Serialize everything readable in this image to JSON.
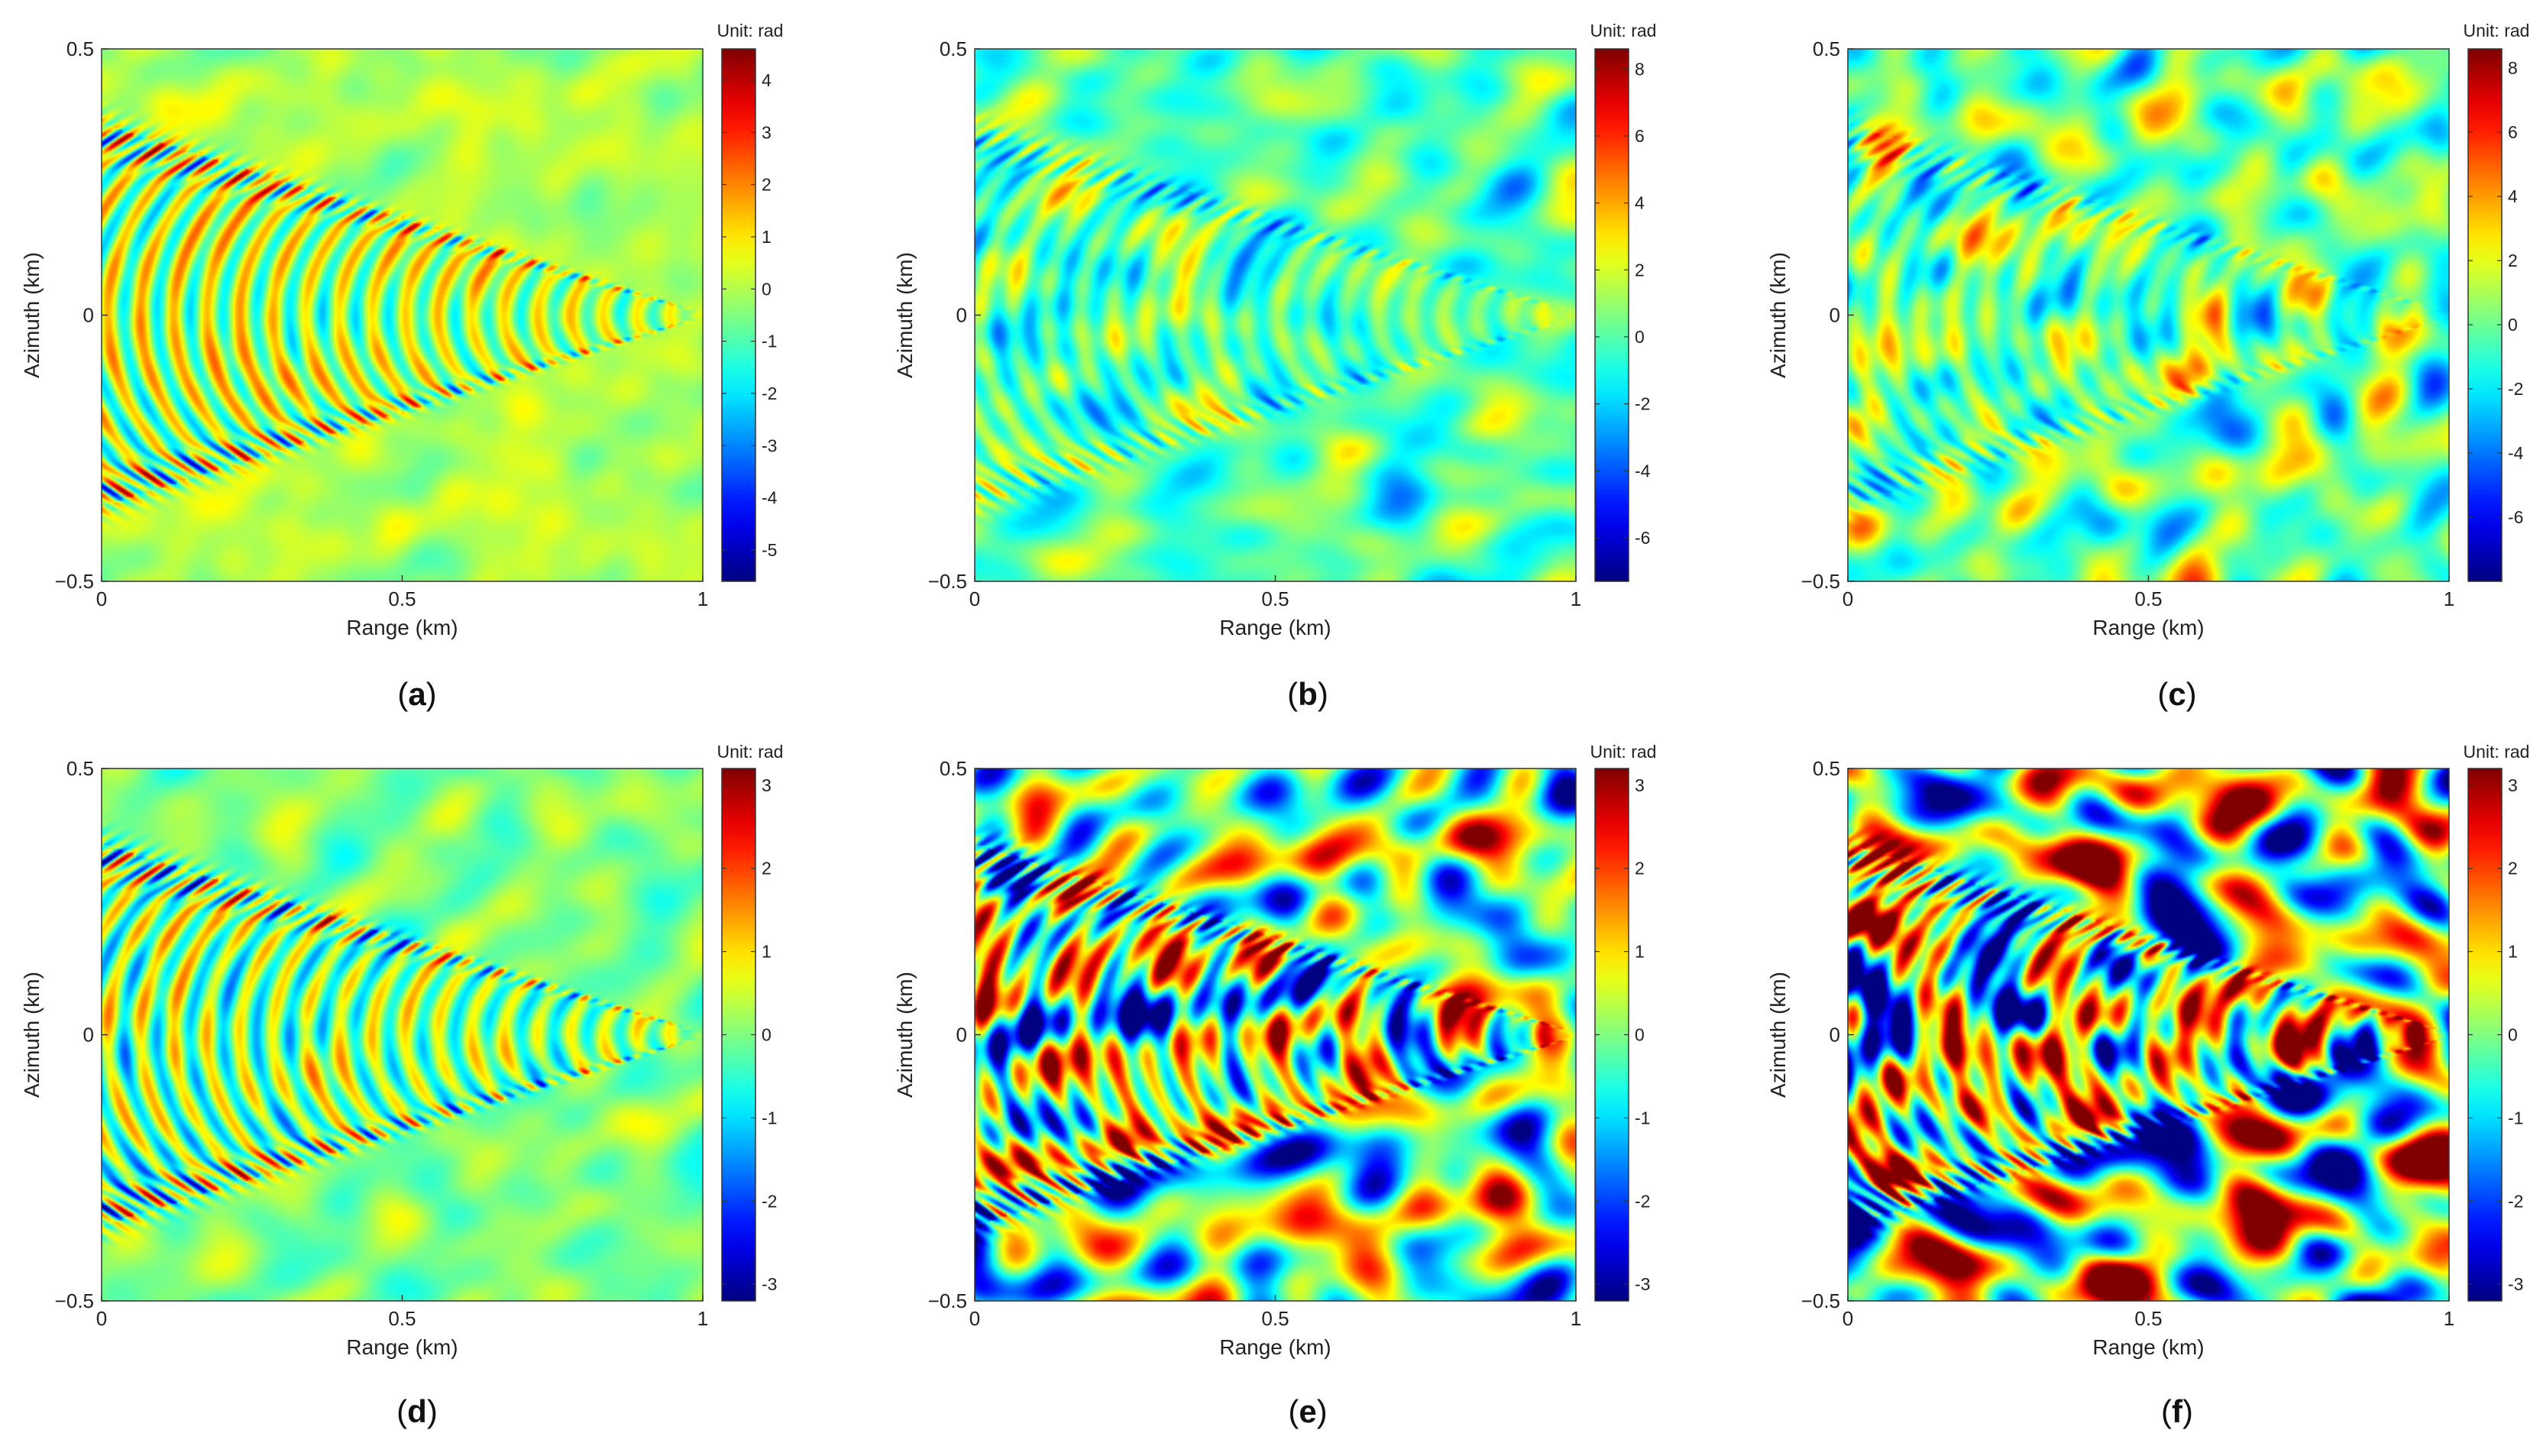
{
  "chart_data": [
    {
      "type": "heatmap",
      "panel_label": "(a)",
      "panel_letter": "a",
      "xlabel": "Range (km)",
      "ylabel": "Azimuth (km)",
      "xlim": [
        0,
        1
      ],
      "ylim": [
        -0.5,
        0.5
      ],
      "xticks": [
        "0",
        "0.5",
        "1"
      ],
      "yticks": [
        "0.5",
        "0",
        "−0.5"
      ],
      "colorbar": {
        "title": "Unit: rad",
        "min": -5.6,
        "max": 4.6,
        "ticks": [
          4,
          3,
          2,
          1,
          0,
          -1,
          -2,
          -3,
          -4,
          -5
        ]
      },
      "pattern": {
        "style": "kelvin",
        "wake_amplitude": 4.6,
        "noise_amplitude": 0.4,
        "background": 0.0
      }
    },
    {
      "type": "heatmap",
      "panel_label": "(b)",
      "panel_letter": "b",
      "xlabel": "Range (km)",
      "ylabel": "Azimuth (km)",
      "xlim": [
        0,
        1
      ],
      "ylim": [
        -0.5,
        0.5
      ],
      "xticks": [
        "0",
        "0.5",
        "1"
      ],
      "yticks": [
        "0.5",
        "0",
        "−0.5"
      ],
      "colorbar": {
        "title": "Unit: rad",
        "min": -7.3,
        "max": 8.6,
        "ticks": [
          8,
          6,
          4,
          2,
          0,
          -2,
          -4,
          -6
        ]
      },
      "pattern": {
        "style": "kelvin",
        "wake_amplitude": 3.2,
        "noise_amplitude": 1.3,
        "background": 0.0
      }
    },
    {
      "type": "heatmap",
      "panel_label": "(c)",
      "panel_letter": "c",
      "xlabel": "Range (km)",
      "ylabel": "Azimuth (km)",
      "xlim": [
        0,
        1
      ],
      "ylim": [
        -0.5,
        0.5
      ],
      "xticks": [
        "0",
        "0.5",
        "1"
      ],
      "yticks": [
        "0.5",
        "0",
        "−0.5"
      ],
      "colorbar": {
        "title": "Unit: rad",
        "min": -8.0,
        "max": 8.6,
        "ticks": [
          8,
          6,
          4,
          2,
          0,
          -2,
          -4,
          -6
        ]
      },
      "pattern": {
        "style": "kelvin",
        "wake_amplitude": 3.0,
        "noise_amplitude": 2.0,
        "background": 0.0
      }
    },
    {
      "type": "heatmap",
      "panel_label": "(d)",
      "panel_letter": "d",
      "xlabel": "Range (km)",
      "ylabel": "Azimuth (km)",
      "xlim": [
        0,
        1
      ],
      "ylim": [
        -0.5,
        0.5
      ],
      "xticks": [
        "0",
        "0.5",
        "1"
      ],
      "yticks": [
        "0.5",
        "0",
        "−0.5"
      ],
      "colorbar": {
        "title": "Unit: rad",
        "min": -3.2,
        "max": 3.2,
        "ticks": [
          3,
          2,
          1,
          0,
          -1,
          -2,
          -3
        ]
      },
      "pattern": {
        "style": "kelvin",
        "wake_amplitude": 3.0,
        "noise_amplitude": 0.35,
        "background": 0.0
      }
    },
    {
      "type": "heatmap",
      "panel_label": "(e)",
      "panel_letter": "e",
      "xlabel": "Range (km)",
      "ylabel": "Azimuth (km)",
      "xlim": [
        0,
        1
      ],
      "ylim": [
        -0.5,
        0.5
      ],
      "xticks": [
        "0",
        "0.5",
        "1"
      ],
      "yticks": [
        "0.5",
        "0",
        "−0.5"
      ],
      "colorbar": {
        "title": "Unit: rad",
        "min": -3.2,
        "max": 3.2,
        "ticks": [
          3,
          2,
          1,
          0,
          -1,
          -2,
          -3
        ]
      },
      "pattern": {
        "style": "kelvin",
        "wake_amplitude": 3.2,
        "noise_amplitude": 1.6,
        "background": 0.0
      }
    },
    {
      "type": "heatmap",
      "panel_label": "(f)",
      "panel_letter": "f",
      "xlabel": "Range (km)",
      "ylabel": "Azimuth (km)",
      "xlim": [
        0,
        1
      ],
      "ylim": [
        -0.5,
        0.5
      ],
      "xticks": [
        "0",
        "0.5",
        "1"
      ],
      "yticks": [
        "0.5",
        "0",
        "−0.5"
      ],
      "colorbar": {
        "title": "Unit: rad",
        "min": -3.2,
        "max": 3.2,
        "ticks": [
          3,
          2,
          1,
          0,
          -1,
          -2,
          -3
        ]
      },
      "pattern": {
        "style": "kelvin",
        "wake_amplitude": 3.2,
        "noise_amplitude": 2.3,
        "background": 0.0
      }
    }
  ],
  "colormap": "jet"
}
